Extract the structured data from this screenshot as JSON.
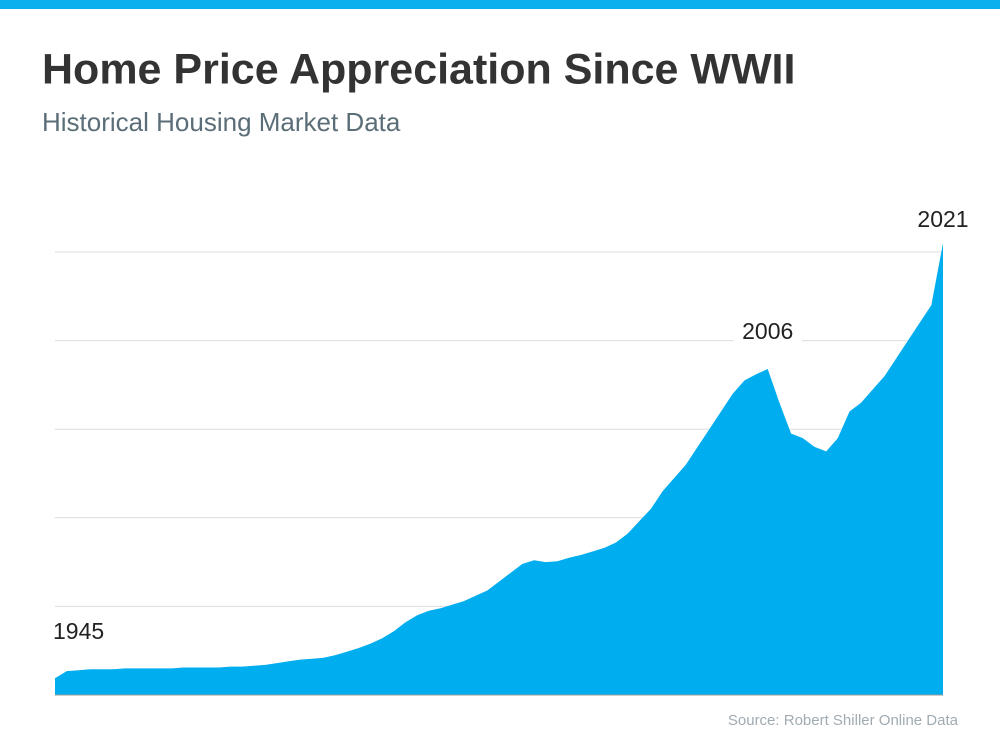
{
  "chart_data": {
    "type": "area",
    "title": "Home Price Appreciation Since WWII",
    "subtitle": "Historical Housing Market Data",
    "source": "Source: Robert Shiller Online Data",
    "x": [
      1945,
      1946,
      1947,
      1948,
      1949,
      1950,
      1951,
      1952,
      1953,
      1954,
      1955,
      1956,
      1957,
      1958,
      1959,
      1960,
      1961,
      1962,
      1963,
      1964,
      1965,
      1966,
      1967,
      1968,
      1969,
      1970,
      1971,
      1972,
      1973,
      1974,
      1975,
      1976,
      1977,
      1978,
      1979,
      1980,
      1981,
      1982,
      1983,
      1984,
      1985,
      1986,
      1987,
      1988,
      1989,
      1990,
      1991,
      1992,
      1993,
      1994,
      1995,
      1996,
      1997,
      1998,
      1999,
      2000,
      2001,
      2002,
      2003,
      2004,
      2005,
      2006,
      2007,
      2008,
      2009,
      2010,
      2011,
      2012,
      2013,
      2014,
      2015,
      2016,
      2017,
      2018,
      2019,
      2020,
      2021
    ],
    "values": [
      0.19,
      0.27,
      0.28,
      0.29,
      0.29,
      0.29,
      0.3,
      0.3,
      0.3,
      0.3,
      0.3,
      0.31,
      0.31,
      0.31,
      0.31,
      0.32,
      0.32,
      0.33,
      0.34,
      0.36,
      0.38,
      0.4,
      0.41,
      0.42,
      0.45,
      0.49,
      0.53,
      0.58,
      0.64,
      0.72,
      0.82,
      0.9,
      0.95,
      0.98,
      1.02,
      1.06,
      1.12,
      1.18,
      1.28,
      1.38,
      1.48,
      1.52,
      1.5,
      1.51,
      1.55,
      1.58,
      1.62,
      1.66,
      1.72,
      1.82,
      1.96,
      2.1,
      2.3,
      2.45,
      2.6,
      2.8,
      3.0,
      3.2,
      3.4,
      3.55,
      3.62,
      3.68,
      3.3,
      2.95,
      2.9,
      2.8,
      2.75,
      2.9,
      3.2,
      3.3,
      3.45,
      3.6,
      3.8,
      4.0,
      4.2,
      4.4,
      5.1
    ],
    "color": "#00adef",
    "xlim": [
      1945,
      2021
    ],
    "ylim": [
      0,
      5.35
    ],
    "yticks": [
      1,
      2,
      3,
      4,
      5
    ],
    "grid": true,
    "annotations": [
      1945,
      2006,
      2021
    ]
  }
}
